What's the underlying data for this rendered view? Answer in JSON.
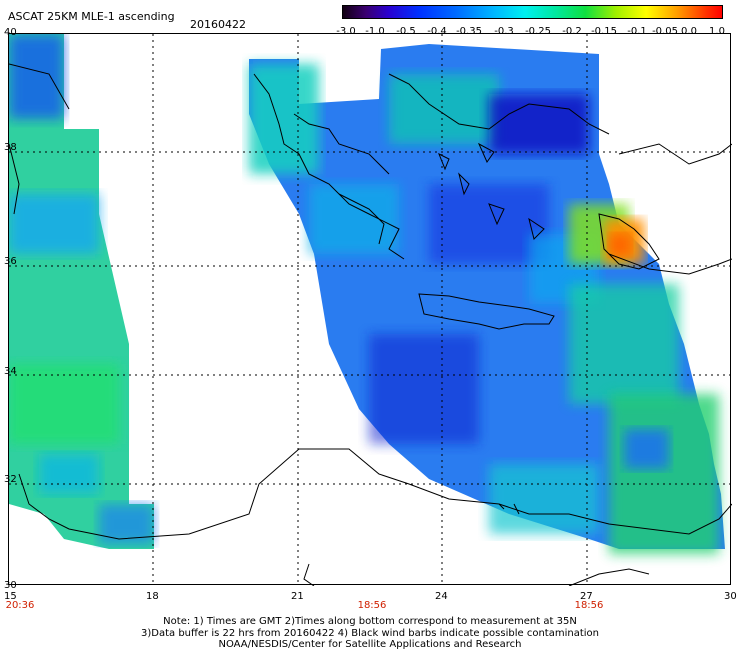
{
  "header": {
    "title": "ASCAT 25KM MLE-1 ascending",
    "date": "20160422"
  },
  "colorbar": {
    "labels": [
      "-3.0",
      "-1.0",
      "-0.5",
      "-0.4",
      "-0.35",
      "-0.3",
      "-0.25",
      "-0.2",
      "-0.15",
      "-0.1",
      "-0.05",
      "0.0",
      "1.0"
    ]
  },
  "axes": {
    "y_labels": [
      "40",
      "38",
      "36",
      "34",
      "32",
      "30"
    ],
    "x_labels": [
      "15",
      "18",
      "21",
      "24",
      "27",
      "30"
    ]
  },
  "times": [
    "20:36",
    "18:56",
    "18:56"
  ],
  "notes": {
    "line1": "Note: 1) Times are GMT 2)Times along bottom correspond to measurement at 35N",
    "line2": "3)Data buffer is 22 hrs from 20160422 4) Black wind barbs indicate possible contamination",
    "line3": "NOAA/NESDIS/Center for Satellite Applications and Research"
  },
  "colors": {
    "time_text": "#d02000",
    "grid": "#000000"
  }
}
